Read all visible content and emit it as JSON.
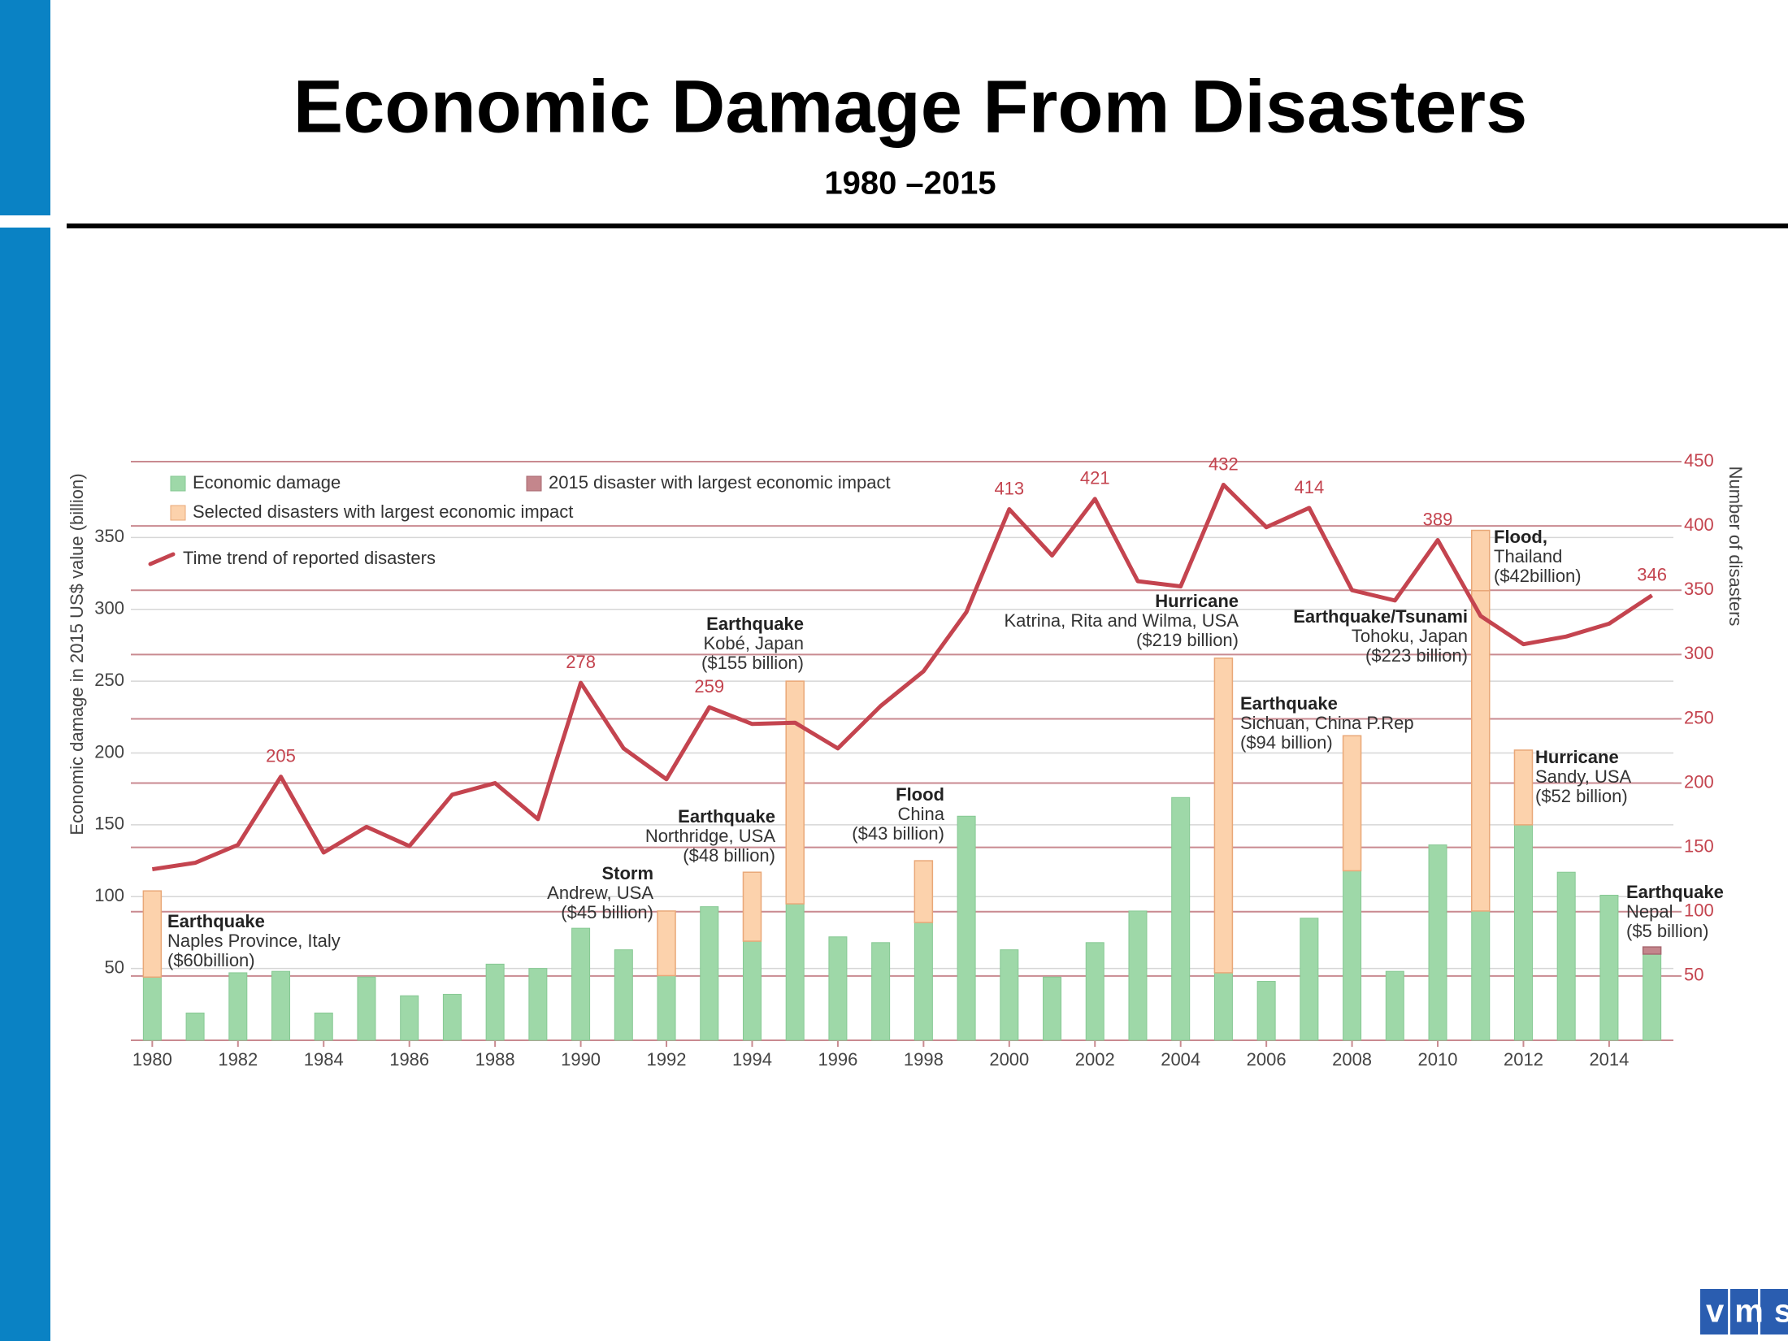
{
  "header": {
    "title": "Economic Damage From Disasters",
    "subtitle": "1980 –2015",
    "logo": "vms"
  },
  "chart_data": {
    "type": "bar",
    "y_label": "Economic damage in 2015 US$ value (billion)",
    "y2_label": "Number of disasters",
    "x": [
      1980,
      1981,
      1982,
      1983,
      1984,
      1985,
      1986,
      1987,
      1988,
      1989,
      1990,
      1991,
      1992,
      1993,
      1994,
      1995,
      1996,
      1997,
      1998,
      1999,
      2000,
      2001,
      2002,
      2003,
      2004,
      2005,
      2006,
      2007,
      2008,
      2009,
      2010,
      2011,
      2012,
      2013,
      2014,
      2015
    ],
    "xlim": [
      1979.5,
      2015.5
    ],
    "xticks": [
      1980,
      1982,
      1984,
      1986,
      1988,
      1990,
      1992,
      1994,
      1996,
      1998,
      2000,
      2002,
      2004,
      2006,
      2008,
      2010,
      2012,
      2014
    ],
    "ylim": [
      0,
      400
    ],
    "yticks": [
      50,
      100,
      150,
      200,
      250,
      300,
      350
    ],
    "y2lim": [
      0,
      450
    ],
    "y2ticks": [
      50,
      100,
      150,
      200,
      250,
      300,
      350,
      400,
      450
    ],
    "grid": true,
    "legend": "top-left",
    "series": [
      {
        "name": "Economic damage",
        "color": "#9ed8a8",
        "values": [
          44,
          19,
          47,
          48,
          19,
          44,
          31,
          32,
          53,
          50,
          78,
          63,
          45,
          93,
          69,
          95,
          72,
          68,
          82,
          156,
          63,
          44,
          68,
          90,
          169,
          47,
          41,
          85,
          118,
          48,
          136,
          90,
          150,
          117,
          101,
          60
        ]
      },
      {
        "name": "Selected disasters with largest economic impact",
        "color": "#fcd2ac"
      },
      {
        "name": "2015 disaster with largest economic impact",
        "color": "#c4868c"
      },
      {
        "name": "Time trend of reported disasters",
        "color": "#c4444f",
        "axis": "y2",
        "type": "line",
        "values": [
          133,
          138,
          152,
          205,
          146,
          166,
          151,
          191,
          200,
          172,
          278,
          227,
          203,
          259,
          246,
          247,
          227,
          260,
          287,
          333,
          413,
          377,
          421,
          357,
          353,
          432,
          399,
          414,
          350,
          342,
          389,
          330,
          308,
          314,
          324,
          346
        ],
        "value_labels": [
          null,
          null,
          null,
          "205",
          null,
          null,
          null,
          null,
          null,
          null,
          "278",
          null,
          null,
          "259",
          null,
          null,
          null,
          null,
          null,
          null,
          "413",
          null,
          "421",
          null,
          null,
          "432",
          null,
          "414",
          null,
          null,
          "389",
          null,
          null,
          null,
          null,
          "346"
        ]
      }
    ],
    "disasters": [
      {
        "x": 1980,
        "series": 1,
        "title": "Earthquake",
        "place": "Naples Province, Italy",
        "value": 60,
        "value_label": "($60billion)"
      },
      {
        "x": 1992,
        "series": 1,
        "title": "Storm",
        "place": "Andrew, USA",
        "value": 45,
        "value_label": "($45 billion)"
      },
      {
        "x": 1994,
        "series": 1,
        "title": "Earthquake",
        "place": "Northridge, USA",
        "value": 48,
        "value_label": "($48 billion)"
      },
      {
        "x": 1995,
        "series": 1,
        "title": "Earthquake",
        "place": "Kobé, Japan",
        "value": 155,
        "value_label": "($155 billion)"
      },
      {
        "x": 1998,
        "series": 1,
        "title": "Flood",
        "place": "China",
        "value": 43,
        "value_label": "($43 billion)"
      },
      {
        "x": 2005,
        "series": 1,
        "title": "Hurricane",
        "place": "Katrina, Rita and Wilma, USA",
        "value": 219,
        "value_label": "($219 billion)"
      },
      {
        "x": 2008,
        "series": 1,
        "title": "Earthquake",
        "place": "Sichuan, China P.Rep",
        "value": 94,
        "value_label": "($94 billion)"
      },
      {
        "x": 2011,
        "series": 1,
        "title": "Earthquake/Tsunami",
        "place": "Tohoku, Japan",
        "value": 223,
        "value_label": "($223 billion)"
      },
      {
        "x": 2011,
        "series": 1,
        "title": "Flood,",
        "place": "Thailand",
        "value": 42,
        "value_label": "($42billion)"
      },
      {
        "x": 2012,
        "series": 1,
        "title": "Hurricane",
        "place": "Sandy, USA",
        "value": 52,
        "value_label": "($52 billion)"
      },
      {
        "x": 2015,
        "series": 2,
        "title": "Earthquake",
        "place": "Nepal",
        "value": 5,
        "value_label": "($5 billion)"
      }
    ]
  }
}
